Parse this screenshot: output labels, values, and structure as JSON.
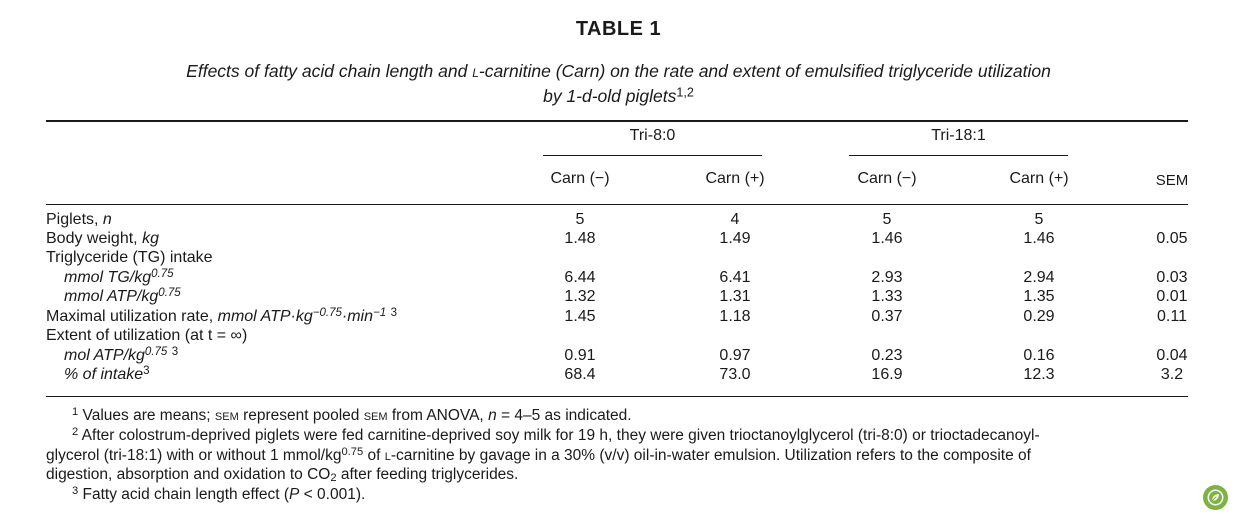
{
  "table": {
    "title": "TABLE 1",
    "caption_part1": "Effects of fatty acid chain length and ",
    "caption_sc": "l",
    "caption_part2": "-carnitine (Carn) on the rate and extent of emulsified triglyceride utilization",
    "caption_line2": "by 1-d-old piglets",
    "caption_sup": "1,2",
    "groups": [
      "Tri-8:0",
      "Tri-18:1"
    ],
    "columns": [
      "Carn (−)",
      "Carn (+)",
      "Carn (−)",
      "Carn (+)",
      "SEM"
    ],
    "rows": [
      {
        "label": "Piglets, ",
        "label_it": "n",
        "sup": "",
        "indent": false,
        "values": [
          "5",
          "4",
          "5",
          "5",
          ""
        ]
      },
      {
        "label": "Body weight, ",
        "label_it": "kg",
        "sup": "",
        "indent": false,
        "values": [
          "1.48",
          "1.49",
          "1.46",
          "1.46",
          "0.05"
        ]
      },
      {
        "label": "Triglyceride (TG) intake",
        "label_it": "",
        "sup": "",
        "indent": false,
        "values": [
          "",
          "",
          "",
          "",
          ""
        ]
      },
      {
        "label": "mmol TG/kg",
        "label_it": "",
        "sup": "0.75",
        "indent": true,
        "values": [
          "6.44",
          "6.41",
          "2.93",
          "2.94",
          "0.03"
        ]
      },
      {
        "label": "mmol ATP/kg",
        "label_it": "",
        "sup": "0.75",
        "indent": true,
        "values": [
          "1.32",
          "1.31",
          "1.33",
          "1.35",
          "0.01"
        ]
      },
      {
        "label": "Maximal utilization rate, ",
        "label_it": "mmol ATP·kg",
        "sup": "−0.75",
        "label_it2": "·min",
        "sup2": "−1",
        "sup3": "3",
        "indent": false,
        "values": [
          "1.45",
          "1.18",
          "0.37",
          "0.29",
          "0.11"
        ]
      },
      {
        "label": "Extent of utilization (at t = ∞)",
        "label_it": "",
        "sup": "",
        "indent": false,
        "values": [
          "",
          "",
          "",
          "",
          ""
        ]
      },
      {
        "label": "mol ATP/kg",
        "label_it": "",
        "sup": "0.75",
        "sup3": "3",
        "indent": true,
        "values": [
          "0.91",
          "0.97",
          "0.23",
          "0.16",
          "0.04"
        ]
      },
      {
        "label": "% of intake",
        "label_it": "",
        "sup": "",
        "sup3": "3",
        "indent": true,
        "values": [
          "68.4",
          "73.0",
          "16.9",
          "12.3",
          "3.2"
        ]
      }
    ]
  },
  "footnotes": {
    "fn1_mark": "1",
    "fn1_a": " Values are means; ",
    "fn1_sem1": "SEM",
    "fn1_b": " represent pooled ",
    "fn1_sem2": "SEM",
    "fn1_c": " from ANOVA, ",
    "fn1_n": "n",
    "fn1_d": " = 4–5 as indicated.",
    "fn2_mark": "2",
    "fn2_a": " After colostrum-deprived piglets were fed carnitine-deprived soy milk for 19 h, they were given trioctanoylglycerol (tri-8:0) or trioctadecanoyl-",
    "fn2_b": "glycerol (tri-18:1) with or without 1 mmol/kg",
    "fn2_b_sup": "0.75",
    "fn2_b2": " of ",
    "fn2_b_sc": "l",
    "fn2_b3": "-carnitine by gavage in a 30% (v/v) oil-in-water emulsion. Utilization refers to the composite of",
    "fn2_c": "digestion, absorption and oxidation to CO",
    "fn2_c_sub": "2",
    "fn2_c2": " after feeding triglycerides.",
    "fn3_mark": "3",
    "fn3_a": " Fatty acid chain length effect (",
    "fn3_p": "P",
    "fn3_b": " < 0.001)."
  },
  "badge": {
    "icon": "leaf-logo-icon",
    "color": "#7cb342"
  }
}
